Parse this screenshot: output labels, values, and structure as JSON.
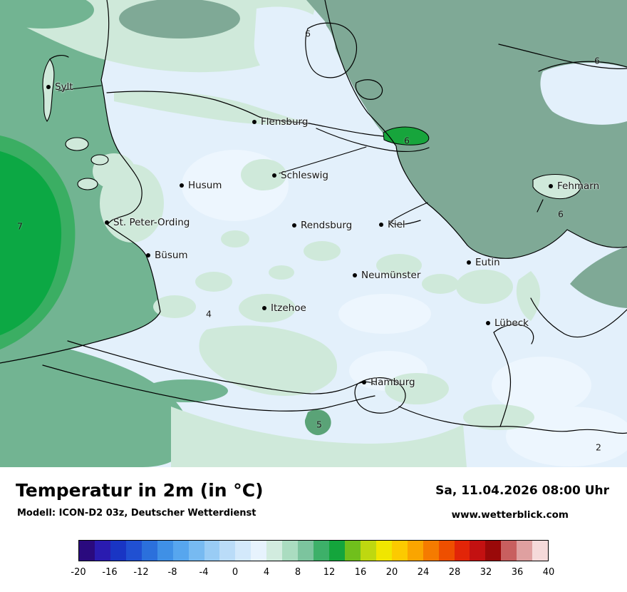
{
  "header": {
    "heading": "Temperatur in 2m (in °C)",
    "model_line": "Modell: ICON-D2 03z, Deutscher Wetterdienst",
    "datetime": "Sa, 11.04.2026 08:00 Uhr",
    "website": "www.wetterblick.com"
  },
  "map": {
    "palette": {
      "land": "#e3f0fb",
      "landlight": "#edf6fe",
      "palegreen": "#cfe9da",
      "seagreen": "#72b492",
      "baltic": "#7fa996",
      "midgreen": "#3bae63",
      "deepgreen": "#0ca844",
      "green6": "#17a53c",
      "green5": "#5aa377"
    },
    "cities": [
      {
        "name": "Sylt"
      },
      {
        "name": "Flensburg"
      },
      {
        "name": "Husum"
      },
      {
        "name": "Schleswig"
      },
      {
        "name": "St. Peter-Ording"
      },
      {
        "name": "Rendsburg"
      },
      {
        "name": "Kiel"
      },
      {
        "name": "Fehmarn"
      },
      {
        "name": "Büsum"
      },
      {
        "name": "Eutin"
      },
      {
        "name": "Neumünster"
      },
      {
        "name": "Itzehoe"
      },
      {
        "name": "Lübeck"
      },
      {
        "name": "Hamburg"
      }
    ],
    "temps": [
      {
        "value": "6"
      },
      {
        "value": "6"
      },
      {
        "value": "6"
      },
      {
        "value": "7"
      },
      {
        "value": "6"
      },
      {
        "value": "4"
      },
      {
        "value": "5"
      },
      {
        "value": "2"
      }
    ]
  },
  "colorbar": {
    "unit": "°C",
    "min": -20,
    "max": 40,
    "ticks": [
      "-20",
      "-16",
      "-12",
      "-8",
      "-4",
      "0",
      "4",
      "8",
      "12",
      "16",
      "20",
      "24",
      "28",
      "32",
      "36",
      "40"
    ],
    "colors": [
      "#2a0a7e",
      "#2a1bb0",
      "#1935c4",
      "#2050d2",
      "#2b70dc",
      "#3f90e6",
      "#57a6ee",
      "#77baf1",
      "#99ccf5",
      "#badcf8",
      "#d3e9fb",
      "#e7f3fd",
      "#d2ecdf",
      "#aadcc0",
      "#7cc49e",
      "#3db069",
      "#14a53c",
      "#70bf1c",
      "#bed810",
      "#f0e600",
      "#fcca00",
      "#faa500",
      "#f57b00",
      "#ee4f00",
      "#e22508",
      "#c31111",
      "#9a0909",
      "#c85f5f",
      "#dfa0a0",
      "#f5dada"
    ]
  }
}
